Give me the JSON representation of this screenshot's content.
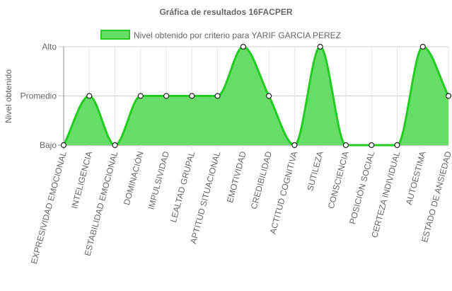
{
  "chart_data": {
    "type": "area",
    "title": "Gráfica de resultados 16FACPER",
    "ylabel": "Nivel obtenido",
    "xlabel": "",
    "y_levels": [
      "Bajo",
      "Promedio",
      "Alto"
    ],
    "ylim": [
      0,
      2
    ],
    "grid": true,
    "legend_position": "top",
    "categories": [
      "EXPRESIVIDAD EMOCIONAL",
      "INTELIGENCIA",
      "ESTABILIDAD EMOCIONAL",
      "DOMINACIÓN",
      "IMPULSIVIDAD",
      "LEALTAD GRUPAL",
      "APTITUD SITUACIONAL",
      "EMOTIVIDAD",
      "CREDIBILIDAD",
      "ACTITUD COGNITIVA",
      "SUTILEZA",
      "CONSCIENCIA",
      "POSICIÓN SOCIAL",
      "CERTEZA INDIVIDUAL",
      "AUTOESTIMA",
      "ESTADO DE ANSIEDAD"
    ],
    "series": [
      {
        "name": "Nivel obtenido por criterio para YARIF GARCIA PEREZ",
        "values": [
          0,
          1,
          0,
          1,
          1,
          1,
          1,
          2,
          1,
          0,
          2,
          0,
          0,
          0,
          2,
          1
        ],
        "fill_color": "#66dd66",
        "line_color": "#22cc22"
      }
    ]
  }
}
